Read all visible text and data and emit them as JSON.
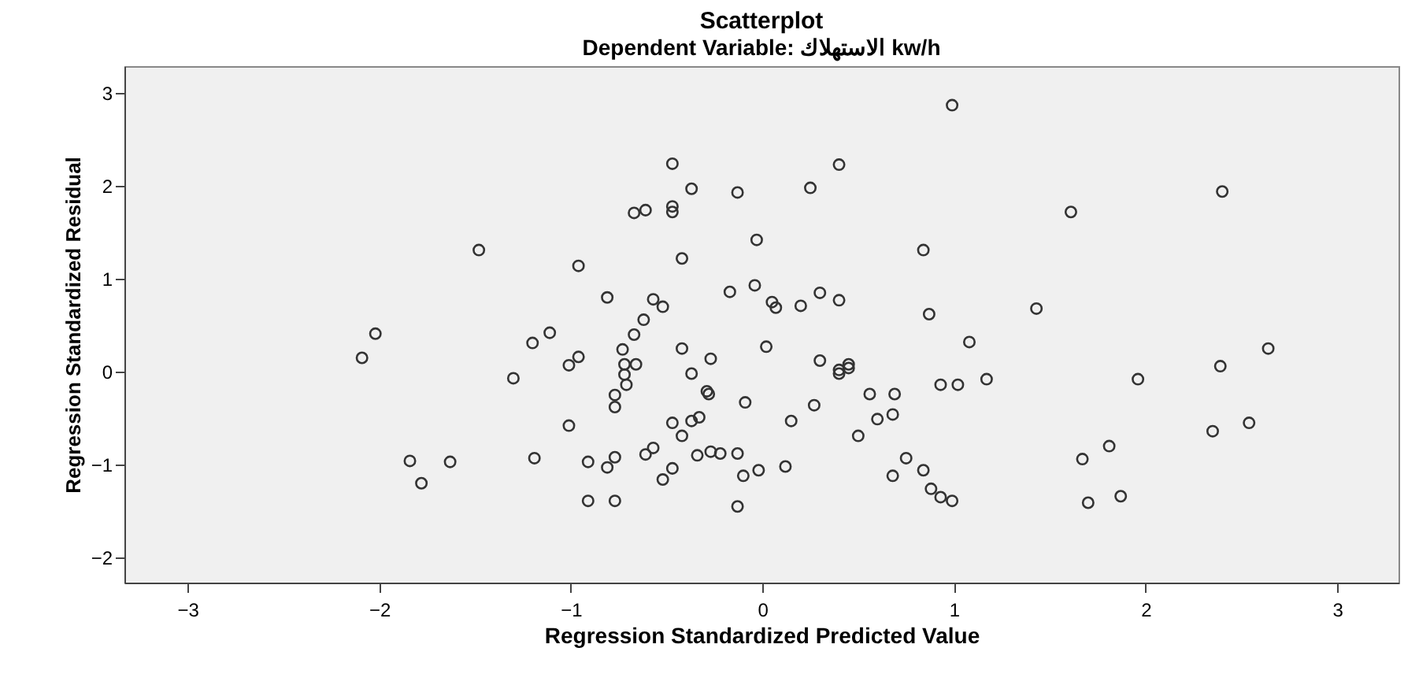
{
  "chart_data": {
    "type": "scatter",
    "title": "Scatterplot",
    "subtitle": "Dependent Variable: الاستهلاك kw/h",
    "xlabel": "Regression Standardized Predicted Value",
    "ylabel": "Regression Standardized Residual",
    "xlim": [
      -3.33,
      3.32
    ],
    "ylim": [
      -2.27,
      3.29
    ],
    "xticks": [
      -3,
      -2,
      -1,
      0,
      1,
      2,
      3
    ],
    "yticks": [
      -2,
      -1,
      0,
      1,
      2,
      3
    ],
    "grid": false,
    "marker": "circle",
    "series": [
      {
        "color": "#333333",
        "x": [
          -1.48,
          -2.02,
          -2.09,
          -1.11,
          -1.2,
          -1.3,
          -1.84,
          -1.63,
          -1.78,
          -1.19,
          0.99,
          -0.47,
          0.4,
          -0.37,
          -0.13,
          0.25,
          -0.67,
          -0.61,
          -0.47,
          -0.47,
          -0.03,
          0.84,
          -0.96,
          -0.42,
          -0.81,
          -0.57,
          -0.52,
          -0.17,
          -0.04,
          0.05,
          0.07,
          0.2,
          0.3,
          0.4,
          0.87,
          1.08,
          -0.62,
          -0.67,
          -0.73,
          -0.42,
          0.02,
          -1.01,
          -0.96,
          -0.72,
          -0.66,
          -0.72,
          -0.71,
          -0.27,
          -0.37,
          0.3,
          0.4,
          0.4,
          0.45,
          0.45,
          1.17,
          0.93,
          1.02,
          -0.77,
          -0.77,
          -0.29,
          -0.28,
          -0.09,
          0.56,
          0.69,
          -1.01,
          -0.47,
          -0.37,
          -0.33,
          -0.42,
          0.27,
          0.15,
          0.5,
          0.6,
          0.68,
          -0.91,
          -0.81,
          -0.77,
          -0.61,
          -0.57,
          -0.47,
          -0.52,
          -0.34,
          -0.27,
          -0.22,
          -0.13,
          -0.1,
          -0.02,
          0.12,
          0.75,
          0.68,
          0.84,
          0.88,
          0.93,
          0.99,
          -0.91,
          -0.77,
          -0.13,
          2.4,
          1.61,
          1.43,
          1.96,
          2.39,
          2.64,
          2.35,
          2.54,
          1.81,
          1.67,
          1.87,
          1.7
        ],
        "values": [
          1.31,
          0.41,
          0.15,
          0.42,
          0.31,
          -0.07,
          -0.96,
          -0.97,
          -1.2,
          -0.93,
          2.87,
          2.24,
          2.23,
          1.97,
          1.93,
          1.98,
          1.71,
          1.74,
          1.78,
          1.72,
          1.42,
          1.31,
          1.14,
          1.22,
          0.8,
          0.78,
          0.7,
          0.86,
          0.93,
          0.75,
          0.69,
          0.71,
          0.85,
          0.77,
          0.62,
          0.32,
          0.56,
          0.4,
          0.24,
          0.25,
          0.27,
          0.07,
          0.16,
          0.08,
          0.08,
          -0.03,
          -0.14,
          0.14,
          -0.02,
          0.12,
          0.02,
          -0.02,
          0.08,
          0.04,
          -0.08,
          -0.14,
          -0.14,
          -0.25,
          -0.38,
          -0.21,
          -0.24,
          -0.33,
          -0.24,
          -0.24,
          -0.58,
          -0.55,
          -0.53,
          -0.49,
          -0.69,
          -0.36,
          -0.53,
          -0.69,
          -0.51,
          -0.46,
          -0.97,
          -1.03,
          -0.92,
          -0.89,
          -0.82,
          -1.04,
          -1.16,
          -0.9,
          -0.86,
          -0.88,
          -0.88,
          -1.12,
          -1.06,
          -1.02,
          -0.93,
          -1.12,
          -1.06,
          -1.26,
          -1.35,
          -1.39,
          -1.39,
          -1.39,
          -1.45,
          1.94,
          1.72,
          0.68,
          -0.08,
          0.06,
          0.25,
          -0.64,
          -0.55,
          -0.8,
          -0.94,
          -1.34,
          -1.41
        ]
      }
    ]
  }
}
